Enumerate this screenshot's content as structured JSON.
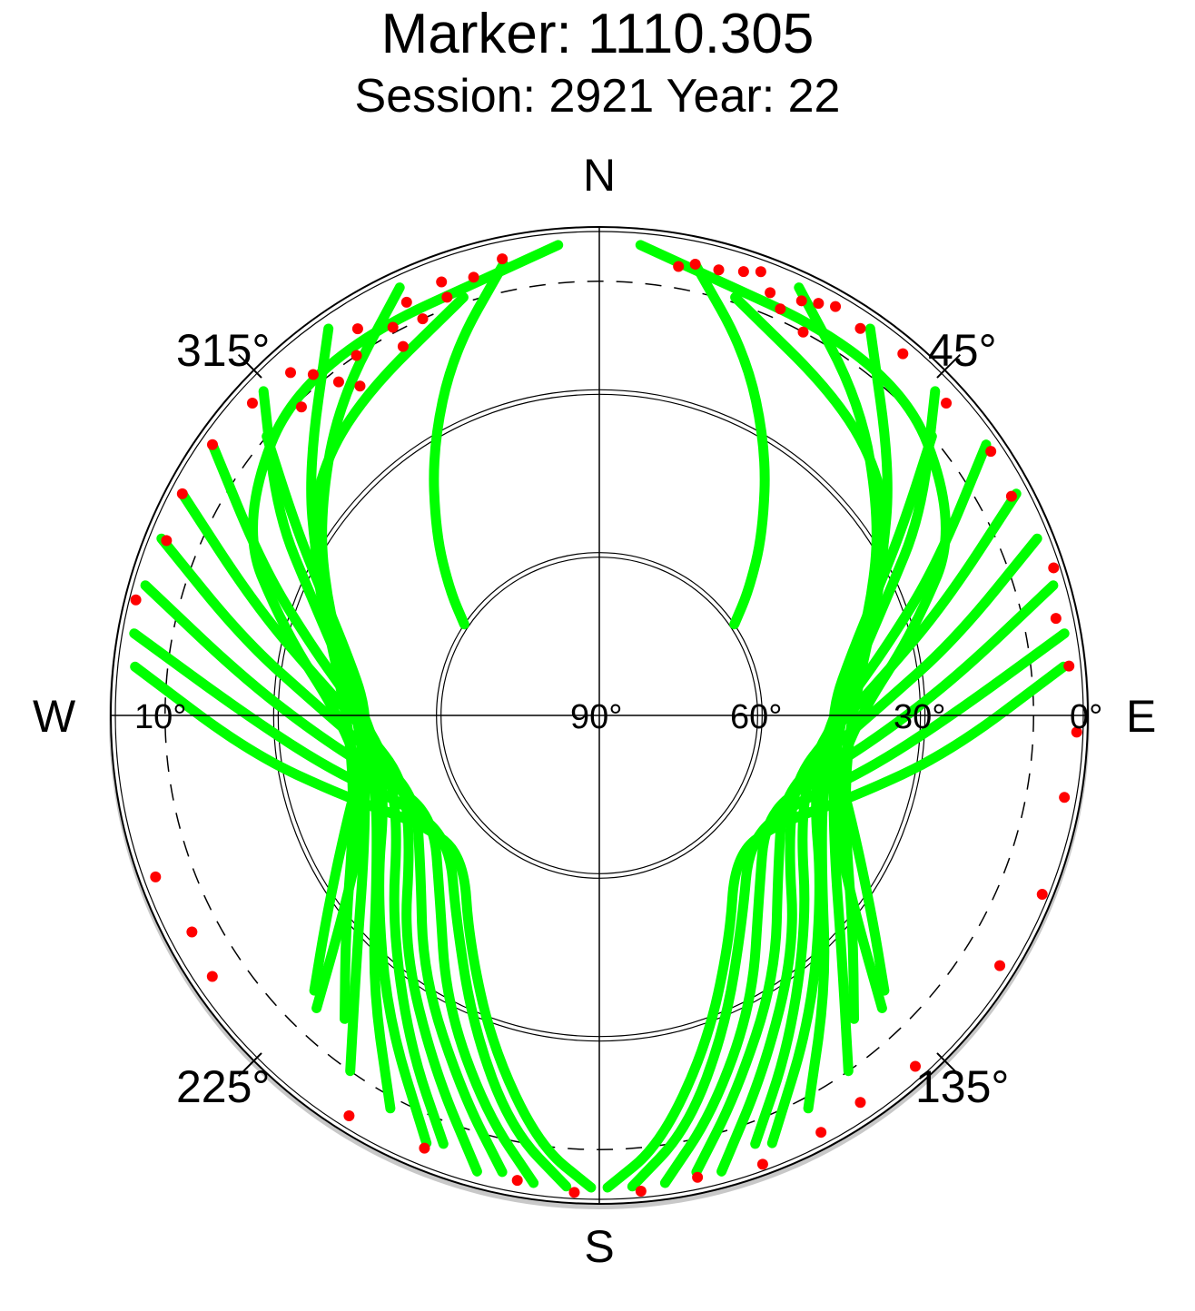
{
  "chart_data": {
    "type": "scatter",
    "projection": "polar-skyplot",
    "title": "Marker: 1110.305",
    "subtitle": "Session: 2921 Year: 22",
    "cardinals": {
      "north": "N",
      "south": "S",
      "east": "E",
      "west": "W"
    },
    "azimuth_labels": [
      {
        "az": 45,
        "text": "45°"
      },
      {
        "az": 135,
        "text": "135°"
      },
      {
        "az": 225,
        "text": "225°"
      },
      {
        "az": 315,
        "text": "315°"
      }
    ],
    "elevation_labels": [
      {
        "el": 0,
        "text": "0°"
      },
      {
        "el": 30,
        "text": "30°"
      },
      {
        "el": 60,
        "text": "60°"
      },
      {
        "el": 90,
        "text": "90°"
      },
      {
        "el": 10,
        "text": "10°"
      }
    ],
    "elevation_rings": [
      0,
      30,
      60
    ],
    "cutoff_elevation": 10,
    "colors": {
      "track": "#00ff00",
      "low_elevation": "#ff0000",
      "axis": "#000000"
    },
    "north_gap_center": {
      "az": 0,
      "el": 55
    },
    "tracks_east": [
      {
        "az": [
          5,
          40,
          62,
          75,
          90,
          105,
          118,
          128,
          136
        ],
        "el": [
          3,
          5,
          15,
          30,
          42,
          45,
          40,
          30,
          15
        ]
      },
      {
        "az": [
          18,
          38,
          52,
          64,
          80,
          98,
          115,
          130,
          140
        ],
        "el": [
          9,
          17,
          23,
          32,
          41,
          44,
          40,
          29,
          17
        ]
      },
      {
        "az": [
          25,
          40,
          55,
          68,
          84,
          102,
          120,
          134,
          145
        ],
        "el": [
          3,
          15,
          27,
          36,
          44,
          46,
          40,
          28,
          10
        ]
      },
      {
        "az": [
          35,
          50,
          62,
          75,
          90,
          107,
          125,
          140,
          152
        ],
        "el": [
          3,
          20,
          31,
          39,
          46,
          47,
          40,
          25,
          8
        ]
      },
      {
        "az": [
          46,
          58,
          68,
          80,
          94,
          110,
          128,
          145,
          158
        ],
        "el": [
          4,
          20,
          33,
          42,
          48,
          48,
          38,
          22,
          5
        ]
      },
      {
        "az": [
          55,
          66,
          76,
          88,
          102,
          118,
          135,
          150,
          160
        ],
        "el": [
          3,
          22,
          35,
          45,
          50,
          48,
          36,
          20,
          6
        ]
      },
      {
        "az": [
          62,
          72,
          82,
          94,
          108,
          124,
          140,
          155,
          165
        ],
        "el": [
          3,
          23,
          37,
          47,
          52,
          48,
          34,
          18,
          3
        ]
      },
      {
        "az": [
          68,
          78,
          88,
          100,
          114,
          130,
          146,
          160,
          168
        ],
        "el": [
          3,
          23,
          38,
          48,
          53,
          47,
          32,
          16,
          4
        ]
      },
      {
        "az": [
          74,
          84,
          95,
          108,
          122,
          138,
          152,
          164,
          172
        ],
        "el": [
          3,
          24,
          39,
          50,
          54,
          46,
          30,
          14,
          3
        ]
      },
      {
        "az": [
          80,
          90,
          102,
          115,
          130,
          145,
          158,
          168,
          176
        ],
        "el": [
          3,
          25,
          40,
          51,
          54,
          44,
          28,
          12,
          3
        ]
      },
      {
        "az": [
          84,
          96,
          108,
          122,
          136,
          150,
          162,
          172,
          179
        ],
        "el": [
          4,
          25,
          41,
          52,
          54,
          42,
          26,
          10,
          3
        ]
      },
      {
        "az": [
          50,
          58,
          66,
          76,
          88,
          100,
          112,
          126,
          134
        ],
        "el": [
          10,
          24,
          34,
          42,
          47,
          46,
          40,
          28,
          17
        ]
      },
      {
        "az": [
          12,
          22,
          32,
          42,
          50,
          56
        ],
        "el": [
          5,
          18,
          32,
          45,
          54,
          60
        ]
      }
    ],
    "tracks_west": [
      {
        "az": [
          355,
          320,
          298,
          285,
          270,
          255,
          242,
          232,
          224
        ],
        "el": [
          3,
          5,
          15,
          30,
          42,
          45,
          40,
          30,
          15
        ]
      },
      {
        "az": [
          342,
          322,
          308,
          296,
          280,
          262,
          245,
          230,
          220
        ],
        "el": [
          9,
          17,
          23,
          32,
          41,
          44,
          40,
          29,
          17
        ]
      },
      {
        "az": [
          335,
          320,
          305,
          292,
          276,
          258,
          240,
          226,
          215
        ],
        "el": [
          3,
          15,
          27,
          36,
          44,
          46,
          40,
          28,
          10
        ]
      },
      {
        "az": [
          325,
          310,
          298,
          285,
          270,
          253,
          235,
          220,
          208
        ],
        "el": [
          3,
          20,
          31,
          39,
          46,
          47,
          40,
          25,
          8
        ]
      },
      {
        "az": [
          314,
          302,
          292,
          280,
          266,
          250,
          232,
          215,
          202
        ],
        "el": [
          4,
          20,
          33,
          42,
          48,
          48,
          38,
          22,
          5
        ]
      },
      {
        "az": [
          305,
          294,
          284,
          272,
          258,
          242,
          225,
          210,
          200
        ],
        "el": [
          3,
          22,
          35,
          45,
          50,
          48,
          36,
          20,
          6
        ]
      },
      {
        "az": [
          298,
          288,
          278,
          266,
          252,
          236,
          220,
          205,
          195
        ],
        "el": [
          3,
          23,
          37,
          47,
          52,
          48,
          34,
          18,
          3
        ]
      },
      {
        "az": [
          292,
          282,
          272,
          260,
          246,
          230,
          214,
          200,
          192
        ],
        "el": [
          3,
          23,
          38,
          48,
          53,
          47,
          32,
          16,
          4
        ]
      },
      {
        "az": [
          286,
          276,
          265,
          252,
          238,
          222,
          208,
          196,
          188
        ],
        "el": [
          3,
          24,
          39,
          50,
          54,
          46,
          30,
          14,
          3
        ]
      },
      {
        "az": [
          280,
          270,
          258,
          245,
          230,
          215,
          202,
          192,
          184
        ],
        "el": [
          3,
          25,
          40,
          51,
          54,
          44,
          28,
          12,
          3
        ]
      },
      {
        "az": [
          276,
          264,
          252,
          238,
          224,
          210,
          198,
          188,
          181
        ],
        "el": [
          4,
          25,
          41,
          52,
          54,
          42,
          26,
          10,
          3
        ]
      },
      {
        "az": [
          310,
          302,
          294,
          284,
          272,
          260,
          248,
          234,
          226
        ],
        "el": [
          10,
          24,
          34,
          42,
          47,
          46,
          40,
          28,
          17
        ]
      },
      {
        "az": [
          348,
          338,
          328,
          318,
          310,
          304
        ],
        "el": [
          5,
          18,
          32,
          45,
          54,
          60
        ]
      }
    ],
    "low_elevation_points": [
      {
        "az": 340,
        "el": 5
      },
      {
        "az": 335,
        "el": 6
      },
      {
        "az": 332,
        "el": 9
      },
      {
        "az": 326,
        "el": 10
      },
      {
        "az": 322,
        "el": 12
      },
      {
        "az": 318,
        "el": 5
      },
      {
        "az": 312,
        "el": 4
      },
      {
        "az": 305,
        "el": 3
      },
      {
        "az": 298,
        "el": 3
      },
      {
        "az": 292,
        "el": 4
      },
      {
        "az": 284,
        "el": 2
      },
      {
        "az": 250,
        "el": 3
      },
      {
        "az": 242,
        "el": 5
      },
      {
        "az": 236,
        "el": 4
      },
      {
        "az": 212,
        "el": 3
      },
      {
        "az": 202,
        "el": 4
      },
      {
        "az": 190,
        "el": 3
      },
      {
        "az": 183,
        "el": 2
      },
      {
        "az": 175,
        "el": 2
      },
      {
        "az": 168,
        "el": 3
      },
      {
        "az": 160,
        "el": 2
      },
      {
        "az": 152,
        "el": 3
      },
      {
        "az": 146,
        "el": 4
      },
      {
        "az": 138,
        "el": 3
      },
      {
        "az": 122,
        "el": 3
      },
      {
        "az": 112,
        "el": 2
      },
      {
        "az": 100,
        "el": 3
      },
      {
        "az": 92,
        "el": 2
      },
      {
        "az": 84,
        "el": 3
      },
      {
        "az": 78,
        "el": 4
      },
      {
        "az": 72,
        "el": 2
      },
      {
        "az": 62,
        "el": 4
      },
      {
        "az": 56,
        "el": 3
      },
      {
        "az": 48,
        "el": 4
      },
      {
        "az": 40,
        "el": 3
      },
      {
        "az": 28,
        "el": 4
      },
      {
        "az": 20,
        "el": 3
      },
      {
        "az": 15,
        "el": 5
      },
      {
        "az": 10,
        "el": 6
      }
    ],
    "grid": true
  }
}
